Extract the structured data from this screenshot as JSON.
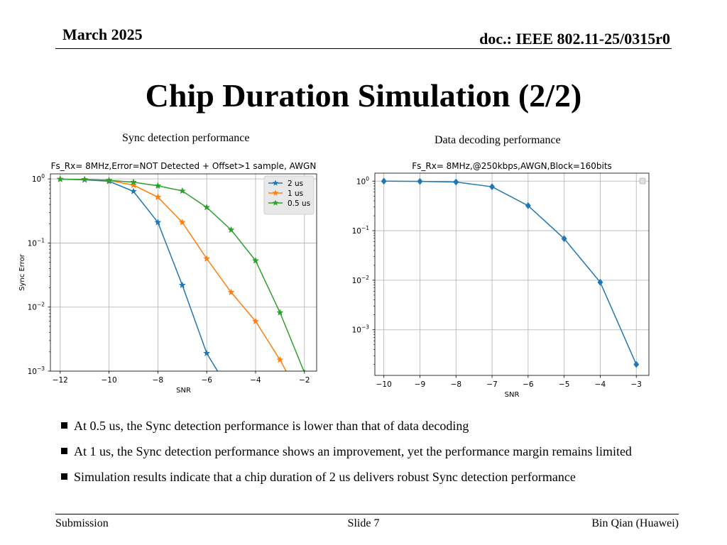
{
  "header": {
    "date": "March 2025",
    "doc": "doc.: IEEE 802.11-25/0315r0"
  },
  "title": "Chip Duration Simulation (2/2)",
  "captions": {
    "left": "Sync detection performance",
    "right": "Data decoding performance"
  },
  "chart_data": [
    {
      "type": "line",
      "title": "Fs_Rx= 8MHz,Error=NOT Detected + Offset>1 sample, AWGN",
      "xlabel": "SNR",
      "ylabel": "Sync Error",
      "yscale": "log",
      "xlim": [
        -12.4,
        -1.5
      ],
      "ylim": [
        0.001,
        1.2
      ],
      "xticks": [
        -12,
        -10,
        -8,
        -6,
        -4,
        -2
      ],
      "xtick_labels": [
        "−12",
        "−10",
        "−8",
        "−6",
        "−4",
        "−2"
      ],
      "yticks": [
        1,
        0.1,
        0.01,
        0.001
      ],
      "ytick_bases": [
        "10",
        "10",
        "10",
        "10"
      ],
      "ytick_exps": [
        "0",
        "−1",
        "−2",
        "−3"
      ],
      "grid": true,
      "legend_position": "top-right",
      "marker": "star",
      "series": [
        {
          "name": "2 us",
          "color": "#1f77b4",
          "x": [
            -12,
            -11,
            -10,
            -9,
            -8,
            -7,
            -6,
            -5
          ],
          "y": [
            0.99,
            0.97,
            0.92,
            0.64,
            0.21,
            0.022,
            0.0019,
            0.00045
          ]
        },
        {
          "name": "1 us",
          "color": "#ff7f0e",
          "x": [
            -12,
            -11,
            -10,
            -9,
            -8,
            -7,
            -6,
            -5,
            -4,
            -3,
            -2
          ],
          "y": [
            0.99,
            0.98,
            0.95,
            0.8,
            0.52,
            0.21,
            0.057,
            0.017,
            0.006,
            0.0015,
            0.0003
          ]
        },
        {
          "name": "0.5 us",
          "color": "#2ca02c",
          "x": [
            -12,
            -11,
            -10,
            -9,
            -8,
            -7,
            -6,
            -5,
            -4,
            -3,
            -2
          ],
          "y": [
            0.99,
            0.98,
            0.95,
            0.89,
            0.78,
            0.65,
            0.36,
            0.16,
            0.053,
            0.0082,
            0.00095
          ]
        }
      ]
    },
    {
      "type": "line",
      "title": "Fs_Rx= 8MHz,@250kbps,AWGN,Block=160bits",
      "xlabel": "SNR",
      "ylabel": "",
      "yscale": "log",
      "xlim": [
        -10.25,
        -2.65
      ],
      "ylim": [
        0.00012,
        1.45
      ],
      "xticks": [
        -10,
        -9,
        -8,
        -7,
        -6,
        -5,
        -4,
        -3
      ],
      "xtick_labels": [
        "−10",
        "−9",
        "−8",
        "−7",
        "−6",
        "−5",
        "−4",
        "−3"
      ],
      "yticks": [
        1,
        0.1,
        0.01,
        0.001
      ],
      "ytick_bases": [
        "10",
        "10",
        "10",
        "10"
      ],
      "ytick_exps": [
        "0",
        "−1",
        "−2",
        "−3"
      ],
      "grid": true,
      "legend_position": "top-right",
      "marker": "diamond",
      "series": [
        {
          "color": "#1f77b4",
          "x": [
            -10,
            -9,
            -8,
            -7,
            -6,
            -5,
            -4,
            -3
          ],
          "y": [
            1.0,
            0.99,
            0.96,
            0.77,
            0.32,
            0.069,
            0.0091,
            0.0002
          ]
        }
      ]
    }
  ],
  "bullets": [
    "At 0.5 us, the Sync detection performance is lower than that of data decoding",
    "At 1 us, the Sync detection performance shows an improvement, yet the performance margin remains limited",
    "Simulation results indicate that a chip duration of 2 us delivers robust Sync detection performance"
  ],
  "footer": {
    "left": "Submission",
    "center": "Slide 7",
    "right": "Bin Qian (Huawei)"
  }
}
